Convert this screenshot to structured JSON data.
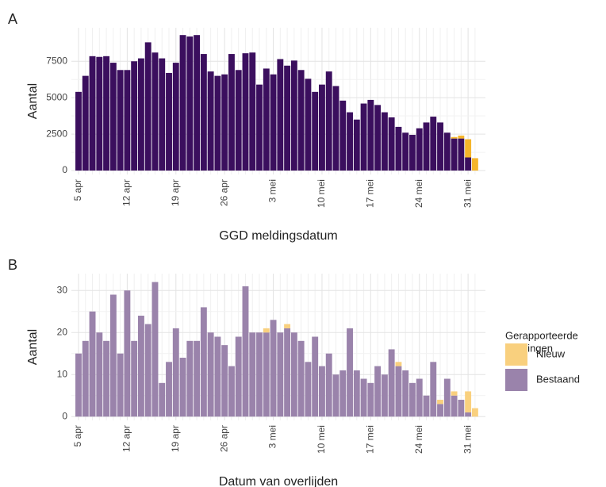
{
  "chart_data": [
    {
      "type": "bar",
      "stacked": true,
      "panel": "A",
      "xlabel": "GGD meldingsdatum",
      "ylabel": "Aantal",
      "categories": [
        "5 apr",
        null,
        null,
        null,
        null,
        null,
        null,
        "12 apr",
        null,
        null,
        null,
        null,
        null,
        null,
        "19 apr",
        null,
        null,
        null,
        null,
        null,
        null,
        "26 apr",
        null,
        null,
        null,
        null,
        null,
        null,
        "3 mei",
        null,
        null,
        null,
        null,
        null,
        null,
        "10 mei",
        null,
        null,
        null,
        null,
        null,
        null,
        "17 mei",
        null,
        null,
        null,
        null,
        null,
        null,
        "24 mei",
        null,
        null,
        null,
        null,
        null,
        null,
        "31 mei",
        null
      ],
      "series": [
        {
          "name": "Bestaand",
          "color": "#3b0f5e",
          "values": [
            5400,
            6500,
            7850,
            7800,
            7850,
            7400,
            6900,
            6900,
            7500,
            7700,
            8800,
            8100,
            7700,
            6700,
            7400,
            9300,
            9200,
            9300,
            8000,
            6800,
            6500,
            6600,
            8000,
            6900,
            8050,
            8100,
            5900,
            7000,
            6600,
            7650,
            7200,
            7550,
            6900,
            6300,
            5400,
            5900,
            6800,
            5800,
            4800,
            4000,
            3500,
            4600,
            4850,
            4500,
            4000,
            3650,
            3000,
            2600,
            2450,
            2900,
            3300,
            3700,
            3300,
            2600,
            2200,
            2200,
            900,
            0
          ]
        },
        {
          "name": "Nieuw",
          "color": "#f5b52b",
          "values": [
            0,
            0,
            0,
            0,
            0,
            0,
            0,
            0,
            0,
            0,
            0,
            0,
            0,
            0,
            0,
            0,
            0,
            0,
            0,
            0,
            0,
            0,
            0,
            0,
            0,
            0,
            0,
            0,
            0,
            0,
            0,
            0,
            0,
            0,
            0,
            0,
            0,
            0,
            0,
            0,
            0,
            0,
            0,
            0,
            0,
            0,
            0,
            0,
            0,
            0,
            0,
            0,
            0,
            0,
            100,
            200,
            1250,
            850
          ]
        }
      ],
      "ylim": [
        -270,
        9800
      ],
      "yticks": [
        0,
        2500,
        5000,
        7500
      ],
      "grid": true
    },
    {
      "type": "bar",
      "stacked": true,
      "panel": "B",
      "xlabel": "Datum van overlijden",
      "ylabel": "Aantal",
      "categories": [
        "5 apr",
        null,
        null,
        null,
        null,
        null,
        null,
        "12 apr",
        null,
        null,
        null,
        null,
        null,
        null,
        "19 apr",
        null,
        null,
        null,
        null,
        null,
        null,
        "26 apr",
        null,
        null,
        null,
        null,
        null,
        null,
        "3 mei",
        null,
        null,
        null,
        null,
        null,
        null,
        "10 mei",
        null,
        null,
        null,
        null,
        null,
        null,
        "17 mei",
        null,
        null,
        null,
        null,
        null,
        null,
        "24 mei",
        null,
        null,
        null,
        null,
        null,
        null,
        "31 mei",
        null
      ],
      "series": [
        {
          "name": "Bestaand",
          "color": "#9a83ab",
          "values": [
            15,
            18,
            25,
            20,
            18,
            29,
            15,
            30,
            18,
            24,
            22,
            32,
            8,
            13,
            21,
            14,
            18,
            18,
            26,
            20,
            19,
            17,
            12,
            19,
            31,
            20,
            20,
            20,
            23,
            20,
            21,
            20,
            18,
            13,
            19,
            12,
            15,
            10,
            11,
            21,
            11,
            9,
            8,
            12,
            10,
            16,
            12,
            11,
            8,
            9,
            5,
            13,
            3,
            9,
            5,
            4,
            1,
            0
          ]
        },
        {
          "name": "Nieuw",
          "color": "#f9d07e",
          "values": [
            0,
            0,
            0,
            0,
            0,
            0,
            0,
            0,
            0,
            0,
            0,
            0,
            0,
            0,
            0,
            0,
            0,
            0,
            0,
            0,
            0,
            0,
            0,
            0,
            0,
            0,
            0,
            1,
            0,
            0,
            1,
            0,
            0,
            0,
            0,
            0,
            0,
            0,
            0,
            0,
            0,
            0,
            0,
            0,
            0,
            0,
            1,
            0,
            0,
            0,
            0,
            0,
            1,
            0,
            1,
            0,
            5,
            2
          ]
        }
      ],
      "ylim": [
        -0.9,
        34
      ],
      "yticks": [
        0,
        10,
        20,
        30
      ],
      "grid": true,
      "legend_title": [
        "Gerapporteerde",
        "meldingen"
      ]
    }
  ]
}
